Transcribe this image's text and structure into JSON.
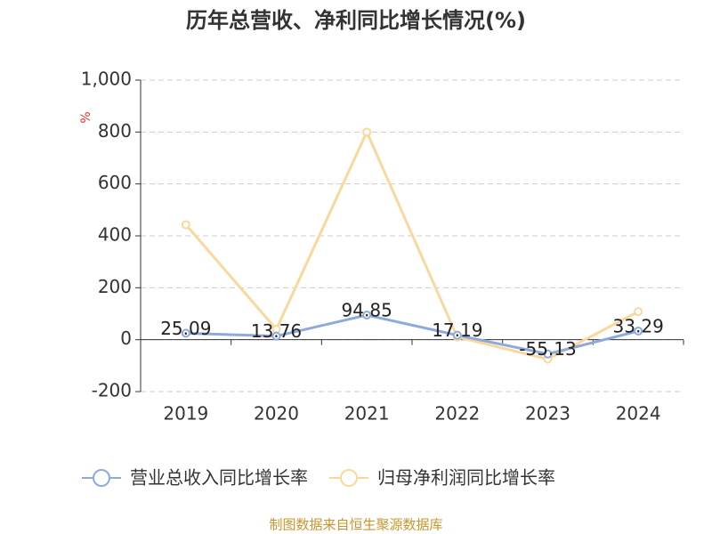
{
  "chart_data": {
    "type": "line",
    "title": "历年总营收、净利同比增长情况(%)",
    "y_label": "%",
    "categories": [
      "2019",
      "2020",
      "2021",
      "2022",
      "2023",
      "2024"
    ],
    "series": [
      {
        "name": "营业总收入同比增长率",
        "color": "#8eaadc",
        "values": [
          25.09,
          13.76,
          94.85,
          17.19,
          -55.13,
          33.29
        ],
        "data_labels": true
      },
      {
        "name": "归母净利润同比增长率",
        "color": "#fad89c",
        "values": [
          443,
          40,
          800,
          10,
          -75,
          108
        ],
        "data_labels": false
      }
    ],
    "ylim": [
      -200,
      1000
    ],
    "yticks": [
      -200,
      0,
      200,
      400,
      600,
      800,
      {
        "value": 1000,
        "label": "1,000"
      }
    ],
    "grid": true,
    "legend": "bottom",
    "source": "制图数据来自恒生聚源数据库"
  }
}
